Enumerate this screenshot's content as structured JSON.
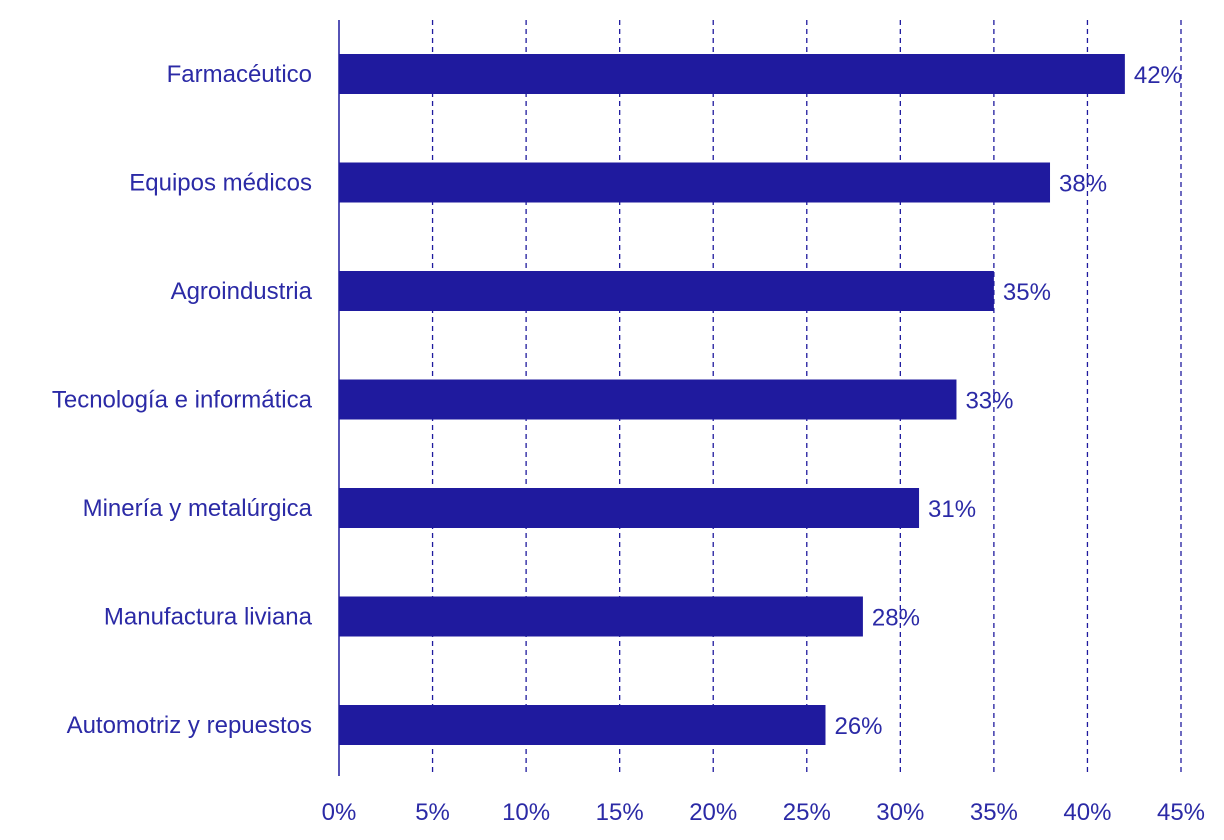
{
  "chart_data": {
    "type": "bar",
    "orientation": "horizontal",
    "categories": [
      "Farmacéutico",
      "Equipos médicos",
      "Agroindustria",
      "Tecnología e informática",
      "Minería y metalúrgica",
      "Manufactura liviana",
      "Automotriz y repuestos"
    ],
    "values": [
      42,
      38,
      35,
      33,
      31,
      28,
      26
    ],
    "value_labels": [
      "42%",
      "38%",
      "35%",
      "33%",
      "31%",
      "28%",
      "26%"
    ],
    "xlim": [
      0,
      45
    ],
    "xticks": [
      0,
      5,
      10,
      15,
      20,
      25,
      30,
      35,
      40,
      45
    ],
    "xtick_labels": [
      "0%",
      "5%",
      "10%",
      "15%",
      "20%",
      "25%",
      "30%",
      "35%",
      "40%",
      "45%"
    ],
    "grid": "vertical dashed",
    "bar_color": "#1f1a9e",
    "text_color": "#2b2aa6"
  }
}
